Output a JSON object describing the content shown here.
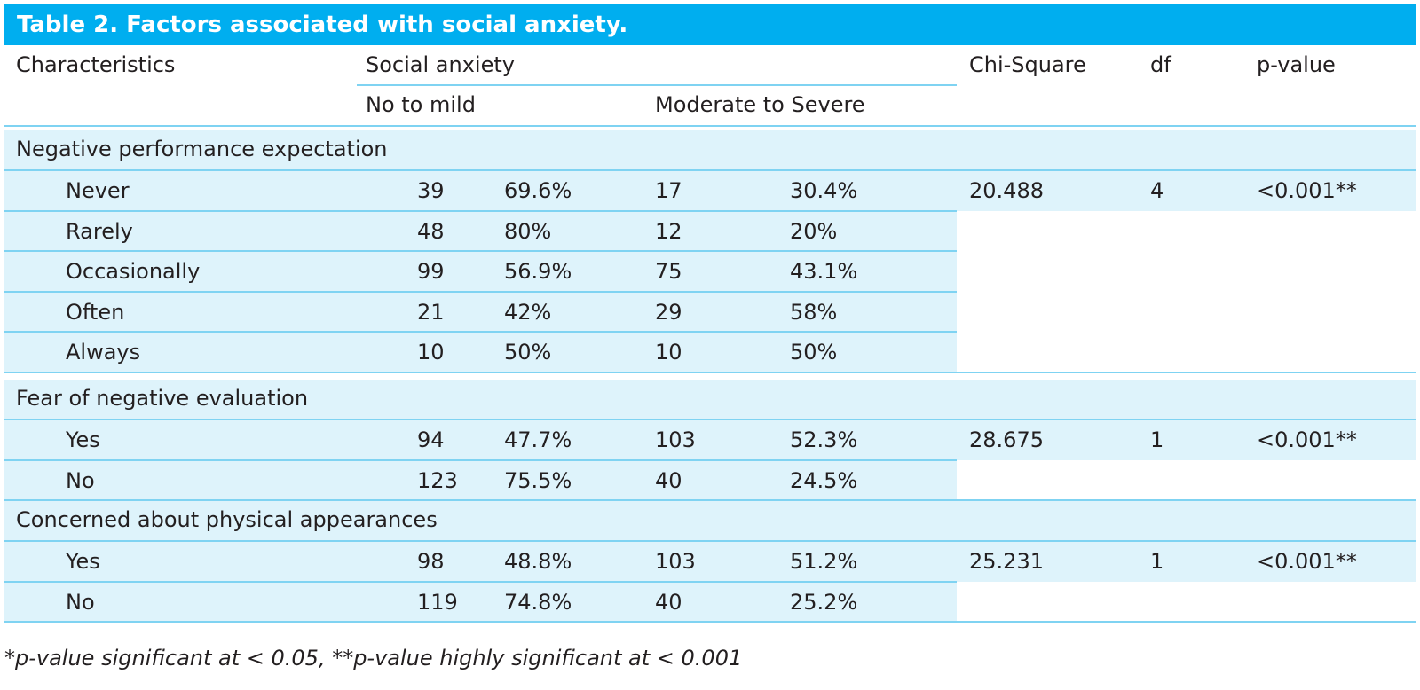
{
  "table": {
    "title": "Table 2. Factors associated with social anxiety.",
    "headers": {
      "characteristics": "Characteristics",
      "social_anxiety": "Social anxiety",
      "no_to_mild": "No to mild",
      "moderate_to_severe": "Moderate to Severe",
      "chi_square": "Chi-Square",
      "df": "df",
      "p_value": "p-value"
    },
    "groups": [
      {
        "label": "Negative performance expectation",
        "chi_square": "20.488",
        "df": "4",
        "p_value": "<0.001**",
        "rows": [
          {
            "label": "Never",
            "n1": "39",
            "p1": "69.6%",
            "n2": "17",
            "p2": "30.4%"
          },
          {
            "label": " Rarely",
            "n1": "48",
            "p1": "80%",
            "n2": "12",
            "p2": "20%"
          },
          {
            "label": "Occasionally",
            "n1": "99",
            "p1": "56.9%",
            "n2": "75",
            "p2": "43.1%"
          },
          {
            "label": "Often",
            "n1": "21",
            "p1": "42%",
            "n2": "29",
            "p2": "58%"
          },
          {
            "label": "Always",
            "n1": "10",
            "p1": "50%",
            "n2": "10",
            "p2": "50%"
          }
        ]
      },
      {
        "label": "Fear of negative evaluation",
        "chi_square": "28.675",
        "df": "1",
        "p_value": "<0.001**",
        "rows": [
          {
            "label": "Yes",
            "n1": "94",
            "p1": "47.7%",
            "n2": "103",
            "p2": "52.3%"
          },
          {
            "label": "No",
            "n1": "123",
            "p1": "75.5%",
            "n2": "40",
            "p2": "24.5%"
          }
        ]
      },
      {
        "label": "Concerned about physical appearances",
        "chi_square": "25.231",
        "df": "1",
        "p_value": "<0.001**",
        "rows": [
          {
            "label": "Yes",
            "n1": "98",
            "p1": "48.8%",
            "n2": "103",
            "p2": "51.2%"
          },
          {
            "label": "No",
            "n1": "119",
            "p1": "74.8%",
            "n2": "40",
            "p2": "25.2%"
          }
        ]
      }
    ],
    "footnote": "*p-value significant at < 0.05, **p-value highly significant at < 0.001"
  }
}
